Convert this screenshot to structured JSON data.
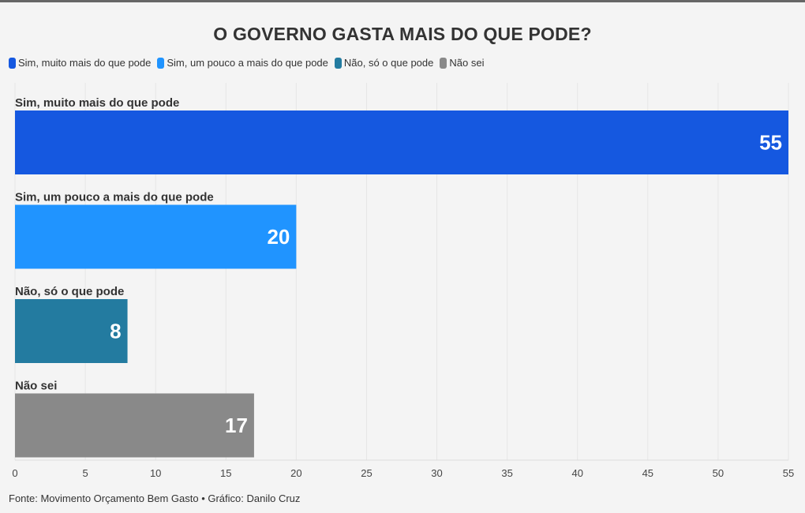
{
  "chart_data": {
    "type": "bar",
    "orientation": "horizontal",
    "title": "O GOVERNO GASTA MAIS DO QUE PODE?",
    "categories": [
      "Sim, muito mais do que pode",
      "Sim, um pouco a mais do que pode",
      "Não, só o que pode",
      "Não sei"
    ],
    "values": [
      55,
      20,
      8,
      17
    ],
    "value_labels": [
      "55",
      "20",
      "8",
      "17"
    ],
    "colors": [
      "#1558e0",
      "#2094ff",
      "#237ba0",
      "#898989"
    ],
    "legend": [
      "Sim, muito mais do que pode",
      "Sim, um pouco a mais do que pode",
      "Não, só o que pode",
      "Não sei"
    ],
    "legend_position": "top-left",
    "xlim": [
      0,
      55
    ],
    "xticks": [
      0,
      5,
      10,
      15,
      20,
      25,
      30,
      35,
      40,
      45,
      50,
      55
    ],
    "xtick_labels": [
      "0",
      "5",
      "10",
      "15",
      "20",
      "25",
      "30",
      "35",
      "40",
      "45",
      "50",
      "55"
    ],
    "grid": true,
    "xlabel": "",
    "ylabel": ""
  },
  "footer": {
    "source": "Fonte: Movimento Orçamento Bem Gasto • Gráfico: Danilo Cruz"
  }
}
